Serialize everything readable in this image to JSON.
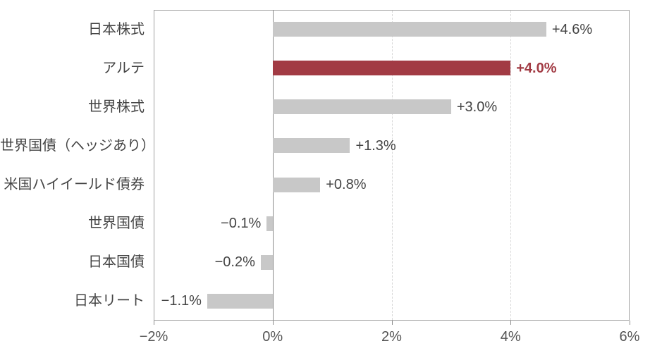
{
  "chart_data": {
    "type": "bar",
    "orientation": "horizontal",
    "title": "",
    "xlabel": "",
    "ylabel": "",
    "categories": [
      "日本株式",
      "アルテ",
      "世界株式",
      "世界国債（ヘッジあり）",
      "米国ハイイールド債券",
      "世界国債",
      "日本国債",
      "日本リート"
    ],
    "values": [
      4.6,
      4.0,
      3.0,
      1.3,
      0.8,
      -0.1,
      -0.2,
      -1.1
    ],
    "value_labels": [
      "+4.6%",
      "+4.0%",
      "+3.0%",
      "+1.3%",
      "+0.8%",
      "−0.1%",
      "−0.2%",
      "−1.1%"
    ],
    "highlight_index": 1,
    "xlim": [
      -2,
      6
    ],
    "x_ticks": [
      -2,
      0,
      2,
      4,
      6
    ],
    "x_tick_labels": [
      "−2%",
      "0%",
      "2%",
      "4%",
      "6%"
    ],
    "grid": "dashed vertical gridlines at interior ticks, solid line at zero",
    "legend": "none",
    "colors": {
      "bar_default": "#c8c8c8",
      "bar_highlight": "#a23b44",
      "value_label_default": "#444444",
      "value_label_highlight": "#a23b44",
      "category_label": "#444444",
      "axis_border": "#a0a0a0",
      "zero_line": "#8c8c8c",
      "gridline": "#d9d9d9",
      "tick_label": "#555555"
    }
  }
}
